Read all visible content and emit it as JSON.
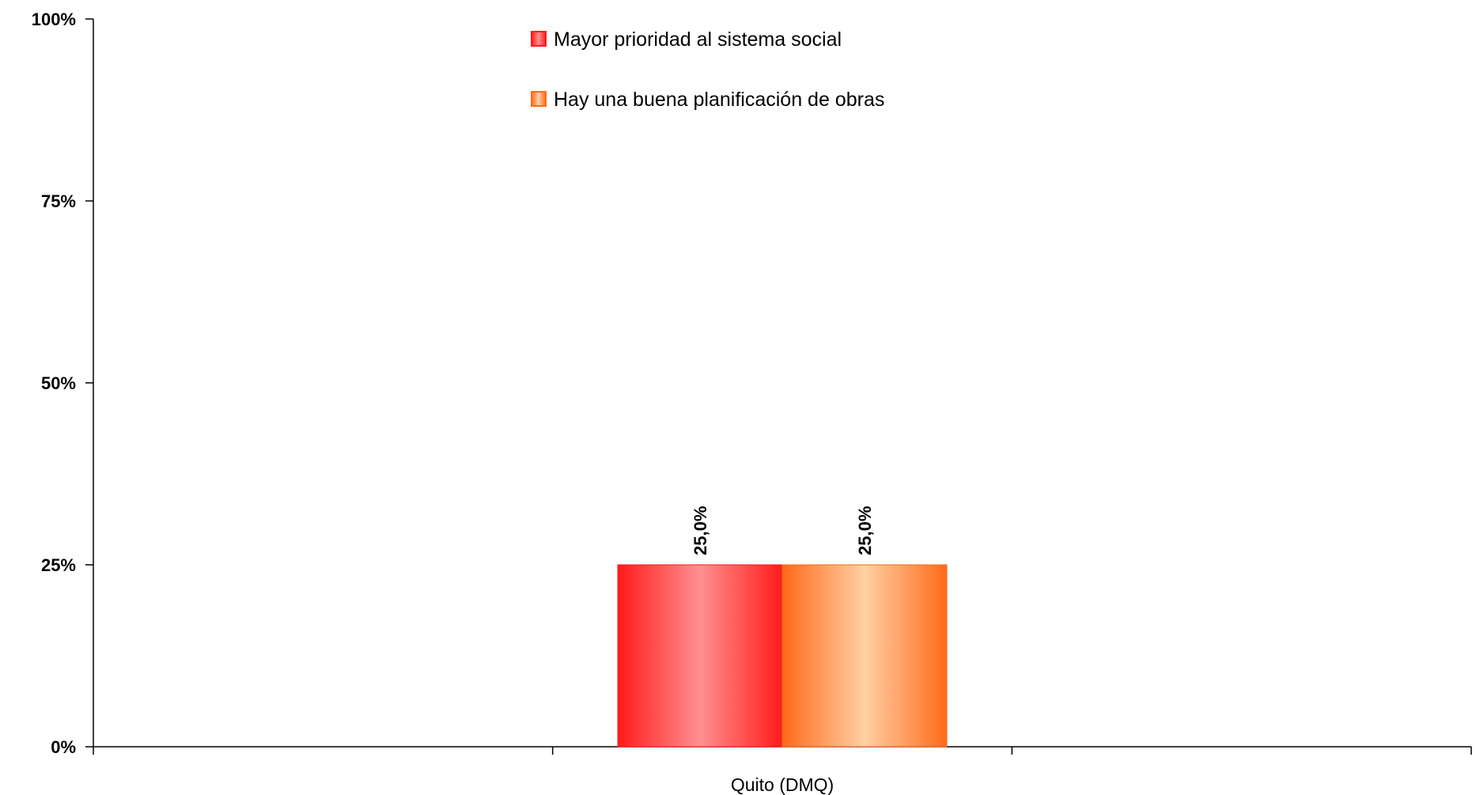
{
  "chart_data": {
    "type": "bar",
    "categories": [
      "Quito (DMQ)"
    ],
    "series": [
      {
        "name": "Mayor prioridad al sistema social",
        "values": [
          25.0
        ],
        "color": "#ff1a1a",
        "highlight": "#ff9090"
      },
      {
        "name": "Hay una buena planificación de obras",
        "values": [
          25.0
        ],
        "color": "#ff6a1a",
        "highlight": "#ffcfa5"
      }
    ],
    "data_labels": [
      "25,0%",
      "25,0%"
    ],
    "y_ticks": [
      {
        "value": 0,
        "label": "0%"
      },
      {
        "value": 25,
        "label": "25%"
      },
      {
        "value": 50,
        "label": "50%"
      },
      {
        "value": 75,
        "label": "75%"
      },
      {
        "value": 100,
        "label": "100%"
      }
    ],
    "ylim": [
      0,
      100
    ],
    "title": "",
    "xlabel": "",
    "ylabel": "",
    "grid": false,
    "legend_position": "top-center"
  }
}
